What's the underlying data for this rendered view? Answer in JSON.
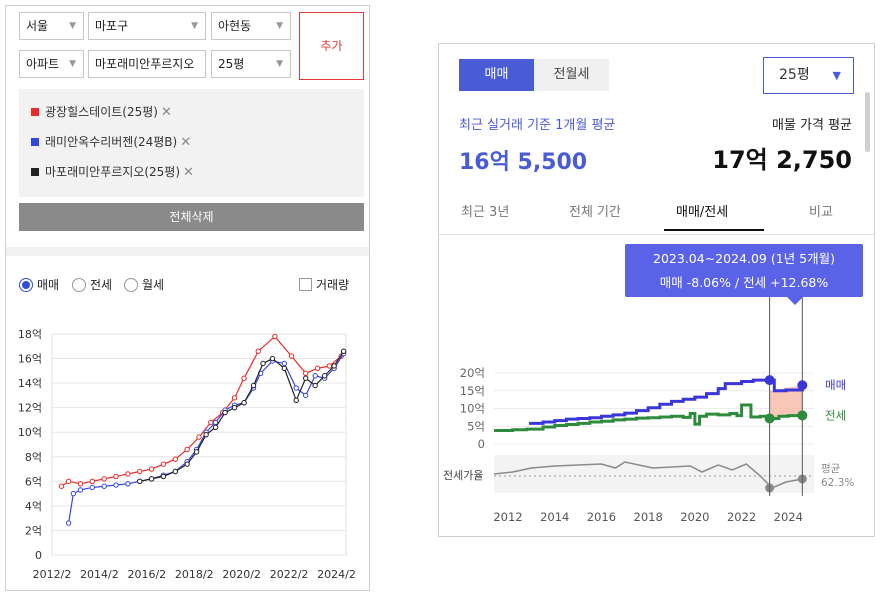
{
  "left": {
    "filters": {
      "city": "서울",
      "district": "마포구",
      "dong": "아현동",
      "type": "아파트",
      "complex": "마포래미안푸르지오",
      "size": "25평",
      "add_label": "추가"
    },
    "compare_items": [
      {
        "label": "광장힐스테이트(25평)",
        "color": "#e82a2a"
      },
      {
        "label": "래미안옥수리버젠(24평B)",
        "color": "#3346e0"
      },
      {
        "label": "마포래미안푸르지오(25평)",
        "color": "#222222"
      }
    ],
    "remove_icon": "✕",
    "delete_all_label": "전체삭제",
    "radio": {
      "options": [
        "매매",
        "전세",
        "월세"
      ],
      "selected": "매매"
    },
    "volume_label": "거래량"
  },
  "right": {
    "tabs": [
      "매매",
      "전월세"
    ],
    "active_tab": "매매",
    "size_select": "25평",
    "recent_label": "최근 실거래 기준 1개월 평균",
    "recent_value": "16억 5,500",
    "listing_label": "매물 가격 평균",
    "listing_value": "17억 2,750",
    "range_tabs": [
      "최근 3년",
      "전체 기간",
      "매매/전세",
      "비교"
    ],
    "active_range_tab": "매매/전세",
    "tooltip": {
      "line1": "2023.04~2024.09 (1년 5개월)",
      "line2": "매매 -8.06%  /  전세 +12.68%"
    }
  },
  "chart_data": [
    {
      "type": "line",
      "title": "",
      "xlabel": "",
      "ylabel": "",
      "x_ticks": [
        "2012/2",
        "2014/2",
        "2016/2",
        "2018/2",
        "2020/2",
        "2022/2",
        "2024/2"
      ],
      "y_ticks": [
        "0",
        "2억",
        "4억",
        "6억",
        "8억",
        "10억",
        "12억",
        "14억",
        "16억",
        "18억"
      ],
      "xlim": [
        2012.1,
        2024.5
      ],
      "ylim": [
        0,
        18
      ],
      "grid": "horizontal",
      "legend": "top",
      "series": [
        {
          "name": "광장힐스테이트(25평)",
          "color": "#e82a2a",
          "x": [
            2012.5,
            2012.8,
            2013.3,
            2013.8,
            2014.3,
            2014.8,
            2015.3,
            2015.8,
            2016.3,
            2016.8,
            2017.3,
            2017.8,
            2018.3,
            2018.8,
            2019.3,
            2019.8,
            2020.2,
            2020.8,
            2021.5,
            2022.2,
            2022.8,
            2023.3,
            2023.8,
            2024.3
          ],
          "y": [
            5.6,
            6.0,
            5.8,
            6.0,
            6.2,
            6.4,
            6.6,
            6.8,
            7.0,
            7.4,
            7.8,
            8.6,
            9.6,
            10.8,
            11.6,
            12.8,
            14.4,
            16.6,
            17.8,
            16.2,
            14.8,
            15.2,
            15.4,
            16.2
          ]
        },
        {
          "name": "래미안옥수리버젠(24평B)",
          "color": "#3346e0",
          "x": [
            2012.8,
            2013.0,
            2013.3,
            2013.8,
            2014.3,
            2014.8,
            2015.3,
            2015.8,
            2016.3,
            2016.8,
            2017.3,
            2017.8,
            2018.2,
            2018.6,
            2019.0,
            2019.4,
            2019.8,
            2020.2,
            2020.6,
            2020.9,
            2021.4,
            2021.9,
            2022.4,
            2022.8,
            2023.2,
            2023.6,
            2024.0,
            2024.4
          ],
          "y": [
            2.6,
            5.0,
            5.3,
            5.5,
            5.6,
            5.7,
            5.8,
            6.0,
            6.2,
            6.5,
            6.8,
            7.6,
            8.6,
            10.0,
            10.8,
            11.8,
            12.2,
            12.4,
            13.6,
            14.8,
            15.8,
            15.6,
            13.6,
            13.0,
            14.6,
            14.4,
            15.2,
            16.4
          ]
        },
        {
          "name": "마포래미안푸르지오(25평)",
          "color": "#222222",
          "x": [
            2015.8,
            2016.3,
            2016.8,
            2017.3,
            2017.8,
            2018.2,
            2018.6,
            2019.0,
            2019.4,
            2019.8,
            2020.2,
            2020.6,
            2021.0,
            2021.4,
            2021.9,
            2022.4,
            2022.8,
            2023.2,
            2023.6,
            2024.0,
            2024.4
          ],
          "y": [
            6.0,
            6.2,
            6.4,
            6.8,
            7.4,
            8.4,
            9.8,
            10.4,
            11.6,
            12.0,
            12.4,
            13.8,
            15.6,
            16.0,
            15.2,
            12.6,
            14.4,
            13.8,
            14.6,
            15.4,
            16.6
          ]
        }
      ]
    },
    {
      "type": "line",
      "title": "",
      "xlabel": "",
      "ylabel": "",
      "x_ticks": [
        "2012",
        "2014",
        "2016",
        "2018",
        "2020",
        "2022",
        "2024"
      ],
      "y_ticks": [
        "0",
        "5억",
        "10억",
        "15억",
        "20억"
      ],
      "xlim": [
        2011.4,
        2025.1
      ],
      "ylim": [
        0,
        20
      ],
      "grid": "horizontal",
      "legend": "right",
      "series": [
        {
          "name": "매매",
          "color": "#3b36d8",
          "x": [
            2012.9,
            2013.5,
            2014.0,
            2014.5,
            2015.0,
            2015.5,
            2016.0,
            2016.5,
            2017.0,
            2017.5,
            2018.0,
            2018.5,
            2019.0,
            2019.5,
            2020.0,
            2020.5,
            2021.0,
            2021.3,
            2022.0,
            2022.5,
            2023.2,
            2023.4,
            2023.9,
            2024.6
          ],
          "y": [
            5.8,
            6.2,
            6.6,
            7.0,
            7.2,
            7.4,
            7.8,
            8.2,
            8.7,
            9.4,
            10.2,
            11.2,
            12.0,
            12.6,
            13.2,
            14.2,
            15.6,
            17.0,
            17.6,
            18.0,
            18.0,
            15.0,
            15.2,
            16.55
          ]
        },
        {
          "name": "전세",
          "color": "#2e8b3e",
          "x": [
            2011.4,
            2012.2,
            2012.8,
            2013.5,
            2014.0,
            2014.5,
            2015.0,
            2015.5,
            2016.0,
            2016.5,
            2017.0,
            2017.5,
            2018.0,
            2018.5,
            2019.0,
            2019.5,
            2019.8,
            2020.0,
            2020.2,
            2020.5,
            2021.0,
            2021.5,
            2021.8,
            2022.0,
            2022.4,
            2022.8,
            2023.2,
            2023.6,
            2024.0,
            2024.6
          ],
          "y": [
            3.8,
            4.0,
            4.2,
            4.8,
            5.2,
            5.5,
            5.8,
            6.2,
            6.4,
            6.8,
            7.0,
            7.3,
            7.4,
            7.6,
            7.8,
            7.5,
            8.6,
            5.6,
            7.8,
            8.4,
            8.2,
            8.6,
            8.0,
            11.0,
            7.6,
            7.8,
            7.2,
            7.8,
            8.0,
            8.05
          ]
        }
      ],
      "ratio_label": "전세가율",
      "ratio_avg_label": "평균",
      "ratio_avg_value": "62.3%",
      "legend_labels": [
        "매매",
        "전세"
      ]
    }
  ]
}
